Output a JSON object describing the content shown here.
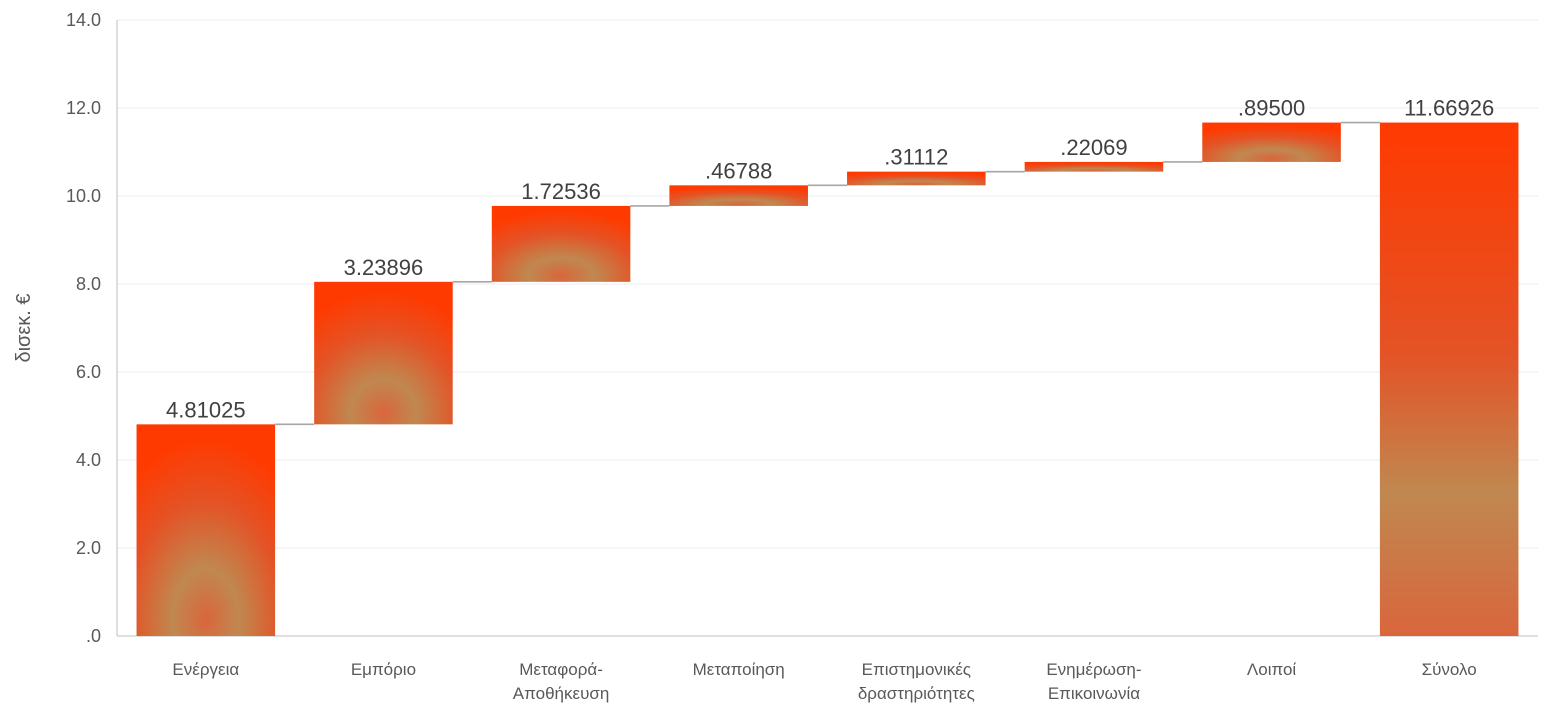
{
  "chart_data": {
    "type": "bar",
    "subtype": "waterfall",
    "categories": [
      [
        "Ενέργεια"
      ],
      [
        "Εμπόριο"
      ],
      [
        "Μεταφορά-",
        "Αποθήκευση"
      ],
      [
        "Μεταποίηση"
      ],
      [
        "Επιστημονικές",
        "δραστηριότητες"
      ],
      [
        "Ενημέρωση-",
        "Επικοινωνία"
      ],
      [
        "Λοιποί"
      ],
      [
        "Σύνολο"
      ]
    ],
    "values": [
      4.81025,
      3.23896,
      1.72536,
      0.46788,
      0.31112,
      0.22069,
      0.895,
      11.66926
    ],
    "value_labels": [
      "4.81025",
      "3.23896",
      "1.72536",
      ".46788",
      ".31112",
      ".22069",
      ".89500",
      "11.66926"
    ],
    "total_index": 7,
    "ylabel": "δισεκ. €",
    "ylim": [
      0,
      14
    ],
    "yticks": [
      ".0",
      "2.0",
      "4.0",
      "6.0",
      "8.0",
      "10.0",
      "12.0",
      "14.0"
    ],
    "grid": true,
    "colors": {
      "bar_edge": "#ff3a00",
      "bar_center": "#c08850",
      "connector": "#a6a6a6",
      "grid": "#ececec",
      "axis": "#bfbfbf"
    }
  }
}
